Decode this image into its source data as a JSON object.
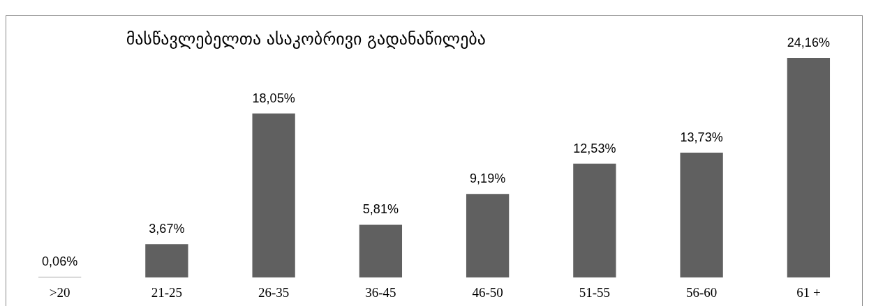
{
  "chart_data": {
    "type": "bar",
    "title": "მასწავლებელთა ასაკობრივი გადანაწილება",
    "categories": [
      ">20",
      "21-25",
      "26-35",
      "36-45",
      "46-50",
      "51-55",
      "56-60",
      "61 +"
    ],
    "values": [
      0.06,
      3.67,
      18.05,
      5.81,
      9.19,
      12.53,
      13.73,
      24.16
    ],
    "value_labels": [
      "0,06%",
      "3,67%",
      "18,05%",
      "5,81%",
      "9,19%",
      "12,53%",
      "13,73%",
      "24,16%"
    ],
    "color": "#606060",
    "ylim": [
      0,
      24.16
    ],
    "grid": false,
    "legend": false,
    "tick_labels": "x"
  }
}
